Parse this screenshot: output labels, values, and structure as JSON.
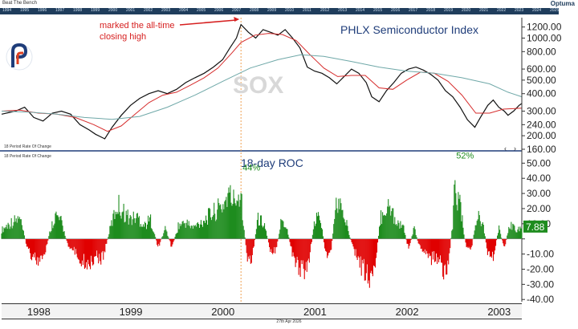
{
  "header": {
    "app_label": "Beat The Bench",
    "brand": "Optuma",
    "year_strip": [
      "1994",
      "1995",
      "1996",
      "1997",
      "1998",
      "1999",
      "2000",
      "2001",
      "2002",
      "2003",
      "2004",
      "2005",
      "2006",
      "2007",
      "2008",
      "2009",
      "2010",
      "2011",
      "2012",
      "2013",
      "2014",
      "2015",
      "2016",
      "2017",
      "2018",
      "2019",
      "2020",
      "2021",
      "2022",
      "2023",
      "2024",
      "2025"
    ]
  },
  "footer": {
    "date": "27th Apr 2026"
  },
  "colors": {
    "price": "#111111",
    "ma_short": "#d62c2c",
    "ma_long": "#6fa8a8",
    "roc_up": "#1e8c1e",
    "roc_down": "#e00000",
    "annotation": "#d62020",
    "title": "#1f3d7a",
    "marker_line": "#f0a050"
  },
  "chart_data": [
    {
      "type": "line",
      "title": "PHLX Semiconductor Index",
      "watermark": "SOX",
      "annotation": [
        "marked the all-time",
        "closing high"
      ],
      "y_scale": "log",
      "ylim": [
        160,
        1400
      ],
      "yticks": [
        160,
        200,
        240,
        300,
        400,
        500,
        600,
        800,
        1000,
        1200
      ],
      "ytick_labels": [
        "160.00",
        "200.00",
        "240.00",
        "300.00",
        "400.00",
        "500.00",
        "600.00",
        "800.00",
        "1000.00",
        "1200.00"
      ],
      "x_range": [
        1997.6,
        2003.25
      ],
      "marker_x": 2000.2,
      "series": [
        {
          "role": "price",
          "points": [
            [
              1997.6,
              285
            ],
            [
              1997.75,
              300
            ],
            [
              1997.85,
              320
            ],
            [
              1997.95,
              270
            ],
            [
              1998.05,
              255
            ],
            [
              1998.15,
              290
            ],
            [
              1998.25,
              300
            ],
            [
              1998.35,
              285
            ],
            [
              1998.45,
              240
            ],
            [
              1998.55,
              220
            ],
            [
              1998.62,
              205
            ],
            [
              1998.72,
              190
            ],
            [
              1998.8,
              230
            ],
            [
              1998.9,
              280
            ],
            [
              1999.0,
              330
            ],
            [
              1999.1,
              370
            ],
            [
              1999.2,
              400
            ],
            [
              1999.3,
              420
            ],
            [
              1999.4,
              400
            ],
            [
              1999.5,
              430
            ],
            [
              1999.6,
              480
            ],
            [
              1999.7,
              520
            ],
            [
              1999.8,
              560
            ],
            [
              1999.9,
              620
            ],
            [
              2000.0,
              700
            ],
            [
              2000.08,
              850
            ],
            [
              2000.15,
              1000
            ],
            [
              2000.2,
              1250
            ],
            [
              2000.28,
              1100
            ],
            [
              2000.36,
              1000
            ],
            [
              2000.44,
              1150
            ],
            [
              2000.52,
              1100
            ],
            [
              2000.6,
              1050
            ],
            [
              2000.68,
              1150
            ],
            [
              2000.76,
              1000
            ],
            [
              2000.84,
              850
            ],
            [
              2000.92,
              620
            ],
            [
              2001.0,
              580
            ],
            [
              2001.08,
              560
            ],
            [
              2001.16,
              520
            ],
            [
              2001.24,
              470
            ],
            [
              2001.32,
              530
            ],
            [
              2001.4,
              600
            ],
            [
              2001.48,
              560
            ],
            [
              2001.56,
              480
            ],
            [
              2001.62,
              380
            ],
            [
              2001.7,
              350
            ],
            [
              2001.78,
              420
            ],
            [
              2001.86,
              480
            ],
            [
              2001.94,
              560
            ],
            [
              2002.02,
              600
            ],
            [
              2002.1,
              620
            ],
            [
              2002.18,
              590
            ],
            [
              2002.26,
              550
            ],
            [
              2002.34,
              500
            ],
            [
              2002.42,
              420
            ],
            [
              2002.5,
              380
            ],
            [
              2002.58,
              320
            ],
            [
              2002.66,
              260
            ],
            [
              2002.74,
              230
            ],
            [
              2002.8,
              270
            ],
            [
              2002.88,
              330
            ],
            [
              2002.94,
              360
            ],
            [
              2003.0,
              320
            ],
            [
              2003.06,
              300
            ],
            [
              2003.1,
              280
            ],
            [
              2003.16,
              300
            ],
            [
              2003.22,
              330
            ],
            [
              2003.25,
              340
            ]
          ]
        },
        {
          "role": "ma_short",
          "points": [
            [
              1997.6,
              300
            ],
            [
              1997.8,
              305
            ],
            [
              1998.0,
              290
            ],
            [
              1998.2,
              285
            ],
            [
              1998.4,
              270
            ],
            [
              1998.6,
              240
            ],
            [
              1998.75,
              215
            ],
            [
              1998.9,
              235
            ],
            [
              1999.05,
              285
            ],
            [
              1999.2,
              345
            ],
            [
              1999.35,
              390
            ],
            [
              1999.5,
              410
            ],
            [
              1999.65,
              460
            ],
            [
              1999.8,
              520
            ],
            [
              1999.95,
              610
            ],
            [
              2000.1,
              780
            ],
            [
              2000.2,
              930
            ],
            [
              2000.35,
              1050
            ],
            [
              2000.5,
              1080
            ],
            [
              2000.65,
              1060
            ],
            [
              2000.8,
              960
            ],
            [
              2000.95,
              760
            ],
            [
              2001.1,
              610
            ],
            [
              2001.25,
              530
            ],
            [
              2001.4,
              540
            ],
            [
              2001.55,
              540
            ],
            [
              2001.7,
              440
            ],
            [
              2001.85,
              430
            ],
            [
              2002.0,
              500
            ],
            [
              2002.15,
              570
            ],
            [
              2002.3,
              560
            ],
            [
              2002.45,
              490
            ],
            [
              2002.6,
              390
            ],
            [
              2002.75,
              290
            ],
            [
              2002.9,
              290
            ],
            [
              2003.05,
              310
            ],
            [
              2003.25,
              315
            ]
          ]
        },
        {
          "role": "ma_long",
          "points": [
            [
              1997.6,
              300
            ],
            [
              1997.9,
              295
            ],
            [
              1998.2,
              285
            ],
            [
              1998.5,
              270
            ],
            [
              1998.8,
              262
            ],
            [
              1999.1,
              275
            ],
            [
              1999.4,
              320
            ],
            [
              1999.7,
              390
            ],
            [
              2000.0,
              490
            ],
            [
              2000.3,
              610
            ],
            [
              2000.6,
              700
            ],
            [
              2000.85,
              760
            ],
            [
              2001.1,
              740
            ],
            [
              2001.4,
              680
            ],
            [
              2001.7,
              620
            ],
            [
              2002.0,
              580
            ],
            [
              2002.3,
              560
            ],
            [
              2002.6,
              520
            ],
            [
              2002.9,
              470
            ],
            [
              2003.1,
              410
            ],
            [
              2003.25,
              380
            ]
          ]
        }
      ]
    },
    {
      "type": "bar",
      "title": "18-day ROC",
      "panel_label": "18 Period Rate Of Change",
      "ylim": [
        -42,
        56
      ],
      "yticks": [
        -40,
        -30,
        -20,
        -10,
        0,
        10,
        20,
        30,
        40,
        50
      ],
      "ytick_labels": [
        "-40.00",
        "-30.00",
        "-20.00",
        "-10.00",
        "",
        "10.00",
        "20.00",
        "30.00",
        "40.00",
        "50.00"
      ],
      "x_range": [
        1997.6,
        2003.25
      ],
      "last_value_label": "7.88",
      "callouts": [
        {
          "x": 2000.2,
          "label": "44%"
        },
        {
          "x": 2002.52,
          "label": "52%"
        }
      ],
      "x_labels": [
        {
          "x": 1998.0,
          "label": "1998"
        },
        {
          "x": 1999.0,
          "label": "1999"
        },
        {
          "x": 2000.0,
          "label": "2000"
        },
        {
          "x": 2001.0,
          "label": "2001"
        },
        {
          "x": 2002.0,
          "label": "2002"
        },
        {
          "x": 2003.0,
          "label": "2003"
        }
      ],
      "envelope": [
        [
          1997.6,
          8
        ],
        [
          1997.7,
          15
        ],
        [
          1997.8,
          18
        ],
        [
          1997.88,
          -8
        ],
        [
          1997.95,
          -18
        ],
        [
          1998.05,
          -22
        ],
        [
          1998.12,
          5
        ],
        [
          1998.18,
          22
        ],
        [
          1998.25,
          15
        ],
        [
          1998.32,
          -5
        ],
        [
          1998.4,
          -12
        ],
        [
          1998.48,
          -20
        ],
        [
          1998.55,
          -22
        ],
        [
          1998.62,
          -15
        ],
        [
          1998.7,
          -18
        ],
        [
          1998.78,
          10
        ],
        [
          1998.86,
          32
        ],
        [
          1998.92,
          25
        ],
        [
          1999.0,
          18
        ],
        [
          1999.08,
          20
        ],
        [
          1999.15,
          12
        ],
        [
          1999.22,
          18
        ],
        [
          1999.3,
          -8
        ],
        [
          1999.38,
          10
        ],
        [
          1999.45,
          -8
        ],
        [
          1999.52,
          12
        ],
        [
          1999.6,
          15
        ],
        [
          1999.68,
          10
        ],
        [
          1999.76,
          15
        ],
        [
          1999.84,
          20
        ],
        [
          1999.92,
          25
        ],
        [
          2000.0,
          30
        ],
        [
          2000.06,
          40
        ],
        [
          2000.12,
          35
        ],
        [
          2000.2,
          44
        ],
        [
          2000.26,
          -15
        ],
        [
          2000.32,
          -20
        ],
        [
          2000.38,
          18
        ],
        [
          2000.45,
          15
        ],
        [
          2000.52,
          -10
        ],
        [
          2000.58,
          -12
        ],
        [
          2000.64,
          18
        ],
        [
          2000.7,
          10
        ],
        [
          2000.76,
          -15
        ],
        [
          2000.82,
          -25
        ],
        [
          2000.88,
          -30
        ],
        [
          2000.94,
          -18
        ],
        [
          2001.0,
          15
        ],
        [
          2001.06,
          22
        ],
        [
          2001.12,
          -15
        ],
        [
          2001.18,
          -10
        ],
        [
          2001.24,
          35
        ],
        [
          2001.3,
          25
        ],
        [
          2001.36,
          10
        ],
        [
          2001.42,
          -10
        ],
        [
          2001.48,
          -20
        ],
        [
          2001.54,
          -30
        ],
        [
          2001.6,
          -38
        ],
        [
          2001.66,
          -20
        ],
        [
          2001.72,
          20
        ],
        [
          2001.78,
          30
        ],
        [
          2001.84,
          25
        ],
        [
          2001.9,
          15
        ],
        [
          2001.96,
          12
        ],
        [
          2002.02,
          -10
        ],
        [
          2002.08,
          10
        ],
        [
          2002.14,
          -8
        ],
        [
          2002.2,
          -10
        ],
        [
          2002.26,
          -18
        ],
        [
          2002.32,
          -15
        ],
        [
          2002.38,
          -25
        ],
        [
          2002.44,
          -30
        ],
        [
          2002.5,
          15
        ],
        [
          2002.52,
          52
        ],
        [
          2002.58,
          30
        ],
        [
          2002.64,
          -5
        ],
        [
          2002.7,
          -10
        ],
        [
          2002.76,
          20
        ],
        [
          2002.82,
          18
        ],
        [
          2002.88,
          -12
        ],
        [
          2002.94,
          -18
        ],
        [
          2003.0,
          10
        ],
        [
          2003.06,
          -8
        ],
        [
          2003.12,
          12
        ],
        [
          2003.18,
          10
        ],
        [
          2003.25,
          8
        ]
      ]
    }
  ]
}
